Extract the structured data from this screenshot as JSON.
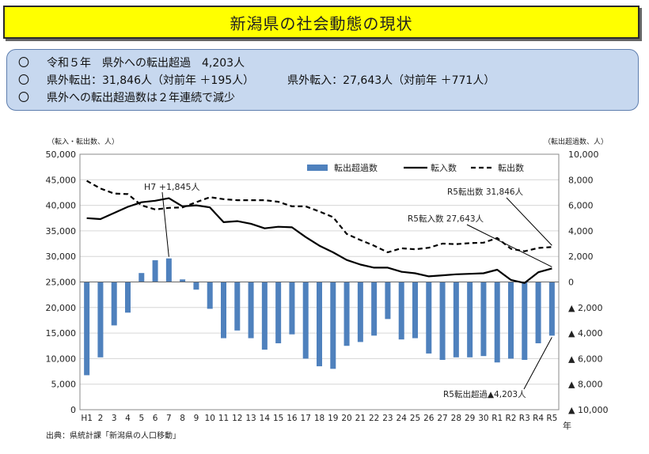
{
  "title": "新潟県の社会動態の現状",
  "summary": {
    "bullet": "〇",
    "line1": "令和５年　県外への転出超過　4,203人",
    "line2a": "県外転出：31,846人（対前年 ＋195人）",
    "line2b": "県外転入：27,643人（対前年 ＋771人）",
    "line3": "県外への転出超過数は２年連続で減少"
  },
  "source": "出典：県統計課「新潟県の人口移動」",
  "chart_data": {
    "type": "bar+line",
    "left_axis_label": "（転入・転出数、人）",
    "right_axis_label": "（転出超過数、人）",
    "x_unit": "年",
    "categories": [
      "H1",
      "2",
      "3",
      "4",
      "5",
      "6",
      "7",
      "8",
      "9",
      "10",
      "11",
      "12",
      "13",
      "14",
      "15",
      "16",
      "17",
      "18",
      "19",
      "20",
      "21",
      "22",
      "23",
      "24",
      "25",
      "26",
      "27",
      "28",
      "29",
      "30",
      "R1",
      "R2",
      "R3",
      "R4",
      "R5"
    ],
    "left_ticks": [
      "0",
      "5,000",
      "10,000",
      "15,000",
      "20,000",
      "25,000",
      "30,000",
      "35,000",
      "40,000",
      "45,000",
      "50,000"
    ],
    "right_ticks": [
      "▲ 10,000",
      "▲ 8,000",
      "▲ 6,000",
      "▲ 4,000",
      "▲ 2,000",
      "0",
      "2,000",
      "4,000",
      "6,000",
      "8,000",
      "10,000"
    ],
    "ylim_left": [
      0,
      50000
    ],
    "ylim_right": [
      -10000,
      10000
    ],
    "legend": [
      "転出超過数",
      "転入数",
      "転出数"
    ],
    "legend_position": "top-right",
    "series": [
      {
        "name": "転出超過数",
        "kind": "bar",
        "axis": "right",
        "values": [
          -7300,
          -5900,
          -3400,
          -2400,
          700,
          1700,
          1845,
          200,
          -600,
          -2100,
          -4400,
          -3800,
          -4400,
          -5300,
          -4800,
          -4100,
          -6000,
          -6600,
          -6800,
          -5000,
          -4700,
          -4200,
          -2900,
          -4500,
          -4400,
          -5600,
          -6100,
          -5900,
          -5900,
          -5800,
          -6300,
          -6000,
          -6100,
          -4800,
          -4203
        ]
      },
      {
        "name": "転入数",
        "kind": "line",
        "axis": "left",
        "values": [
          37500,
          37300,
          38500,
          39700,
          40600,
          40900,
          41400,
          39800,
          40000,
          39600,
          36700,
          36900,
          36400,
          35500,
          35800,
          35700,
          33800,
          32100,
          30800,
          29300,
          28400,
          27800,
          27800,
          27000,
          26700,
          26100,
          26300,
          26500,
          26600,
          26700,
          27400,
          25400,
          24800,
          26900,
          27643
        ]
      },
      {
        "name": "転出数",
        "kind": "line",
        "axis": "left",
        "values": [
          44800,
          43300,
          42300,
          42200,
          40000,
          39200,
          39500,
          39600,
          40600,
          41600,
          41200,
          41000,
          41000,
          41000,
          40700,
          39800,
          39800,
          38800,
          37700,
          34400,
          33200,
          32100,
          30800,
          31600,
          31400,
          31700,
          32500,
          32400,
          32600,
          32700,
          33600,
          31500,
          31000,
          31651,
          31846
        ]
      }
    ],
    "annotations": [
      {
        "text": "H7 +1,845人",
        "category": "7"
      },
      {
        "text": "R5転出数 31,846人",
        "category": "R5"
      },
      {
        "text": "R5転入数 27,643人",
        "category": "R5"
      },
      {
        "text": "R5転出超過▲4,203人",
        "category": "R5"
      }
    ]
  }
}
